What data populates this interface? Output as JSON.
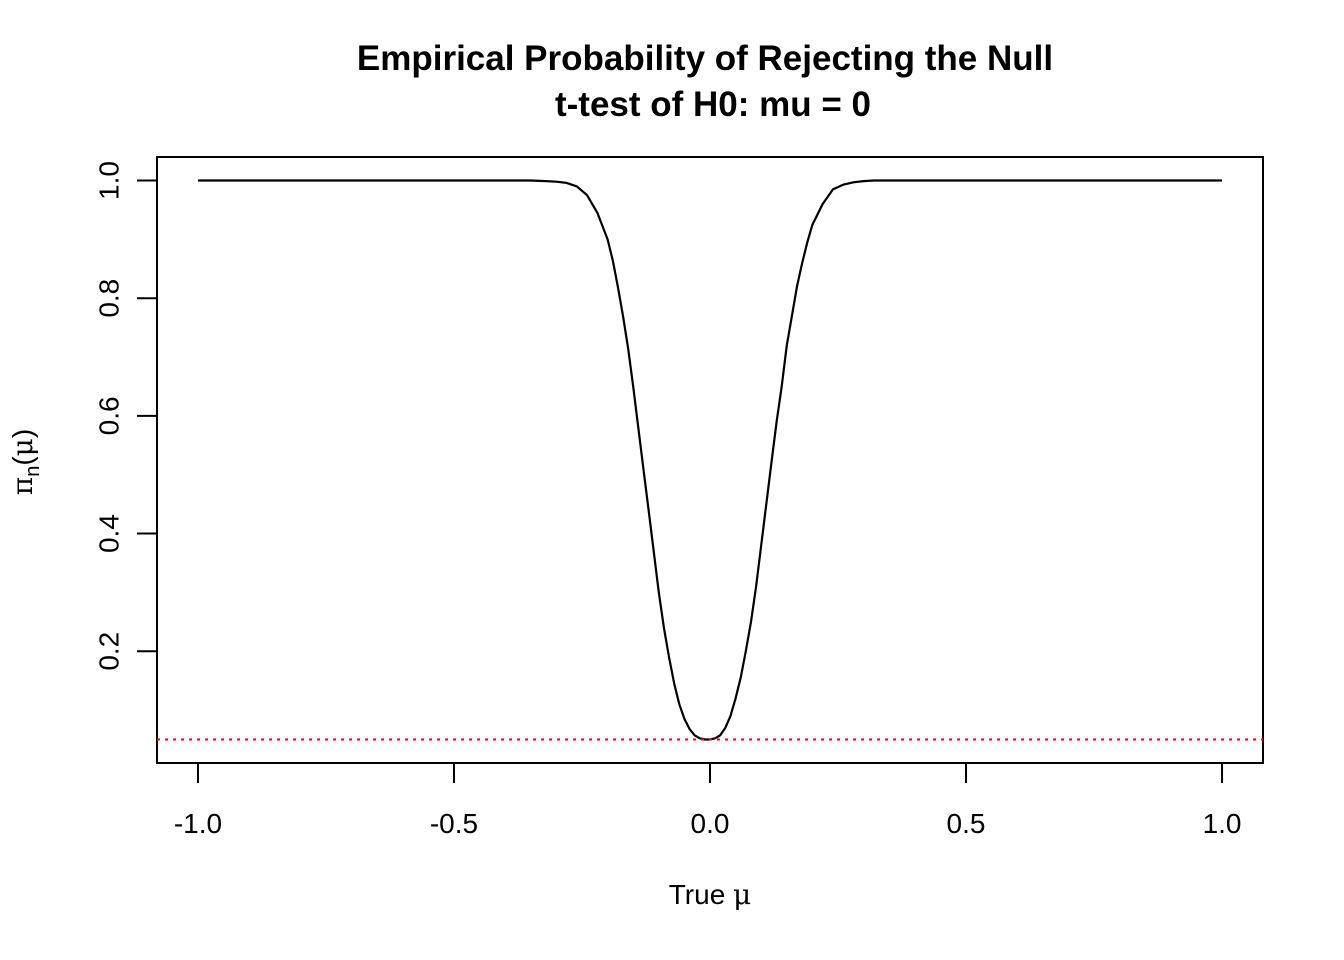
{
  "chart_data": {
    "type": "line",
    "title": "Empirical Probability of Rejecting the Null",
    "subtitle": "t-test of H0: mu = 0",
    "xlabel": {
      "text": "True ",
      "symbol": "μ"
    },
    "ylabel": {
      "symbol": "π",
      "subscript": "n",
      "open": "(",
      "arg": "μ",
      "close": ")"
    },
    "xlim": [
      -1.08,
      1.08
    ],
    "ylim": [
      0.01,
      1.04
    ],
    "x_ticks": [
      -1.0,
      -0.5,
      0.0,
      0.5,
      1.0
    ],
    "x_tick_labels": [
      "-1.0",
      "-0.5",
      "0.0",
      "0.5",
      "1.0"
    ],
    "y_ticks": [
      0.2,
      0.4,
      0.6,
      0.8,
      1.0
    ],
    "y_tick_labels": [
      "0.2",
      "0.4",
      "0.6",
      "0.8",
      "1.0"
    ],
    "grid": false,
    "series": [
      {
        "color": "#000000",
        "style": "solid",
        "x": [
          -1.0,
          -0.9,
          -0.8,
          -0.7,
          -0.6,
          -0.5,
          -0.45,
          -0.4,
          -0.35,
          -0.32,
          -0.3,
          -0.28,
          -0.26,
          -0.24,
          -0.22,
          -0.2,
          -0.19,
          -0.18,
          -0.17,
          -0.16,
          -0.15,
          -0.14,
          -0.13,
          -0.12,
          -0.11,
          -0.1,
          -0.09,
          -0.08,
          -0.07,
          -0.06,
          -0.05,
          -0.04,
          -0.03,
          -0.02,
          -0.01,
          0.0,
          0.01,
          0.02,
          0.03,
          0.04,
          0.05,
          0.06,
          0.07,
          0.08,
          0.09,
          0.1,
          0.11,
          0.12,
          0.13,
          0.14,
          0.15,
          0.16,
          0.17,
          0.18,
          0.19,
          0.2,
          0.22,
          0.24,
          0.26,
          0.28,
          0.3,
          0.32,
          0.35,
          0.4,
          0.45,
          0.5,
          0.6,
          0.7,
          0.8,
          0.9,
          1.0
        ],
        "y": [
          1.0,
          1.0,
          1.0,
          1.0,
          1.0,
          1.0,
          1.0,
          1.0,
          1.0,
          0.999,
          0.998,
          0.996,
          0.99,
          0.975,
          0.945,
          0.9,
          0.865,
          0.82,
          0.77,
          0.715,
          0.65,
          0.58,
          0.51,
          0.44,
          0.37,
          0.3,
          0.24,
          0.19,
          0.145,
          0.11,
          0.085,
          0.068,
          0.057,
          0.052,
          0.05,
          0.05,
          0.052,
          0.057,
          0.07,
          0.09,
          0.12,
          0.155,
          0.2,
          0.25,
          0.31,
          0.38,
          0.45,
          0.52,
          0.59,
          0.65,
          0.72,
          0.77,
          0.82,
          0.86,
          0.895,
          0.925,
          0.96,
          0.985,
          0.993,
          0.997,
          0.999,
          1.0,
          1.0,
          1.0,
          1.0,
          1.0,
          1.0,
          1.0,
          1.0,
          1.0,
          1.0
        ]
      },
      {
        "color": "#ff0000",
        "style": "dotted",
        "hline": 0.05
      }
    ]
  }
}
